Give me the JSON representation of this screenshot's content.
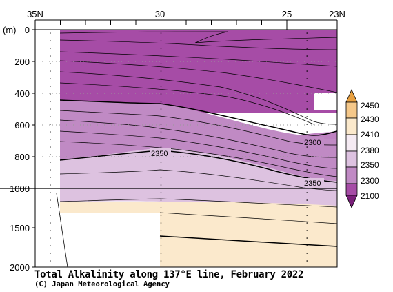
{
  "chart_data": {
    "type": "contour",
    "title": "Total Alkalinity along 137°E line, February 2022",
    "credit": "(C) Japan Meteorological Agency",
    "x_axis": {
      "label": "",
      "ticks": [
        {
          "value": 35,
          "text": "35N"
        },
        {
          "value": 30,
          "text": "30"
        },
        {
          "value": 25,
          "text": "25"
        },
        {
          "value": 23,
          "text": "23N"
        }
      ],
      "range": [
        35,
        23
      ]
    },
    "y_axis": {
      "unit": "(m)",
      "ticks": [
        0,
        200,
        400,
        600,
        800,
        1000,
        1500,
        2000
      ],
      "range": [
        0,
        2000
      ],
      "scale_break": 1000
    },
    "colorbar": {
      "levels": [
        2100,
        2300,
        2350,
        2380,
        2410,
        2430,
        2450
      ],
      "colors": [
        "#a64ca6",
        "#c08ac4",
        "#ddc2e0",
        "#f5ebf3",
        "#fbe9cc",
        "#f5c88a",
        "#e8a040"
      ]
    },
    "contours": [
      {
        "level": 2300,
        "label": "2300",
        "points": [
          [
            33.8,
            435
          ],
          [
            30,
            460
          ],
          [
            27,
            560
          ],
          [
            25.3,
            660
          ],
          [
            24.5,
            700
          ],
          [
            23,
            700
          ]
        ]
      },
      {
        "level": 2350,
        "label": "2350",
        "points": [
          [
            33.8,
            820
          ],
          [
            30,
            770
          ],
          [
            27,
            840
          ],
          [
            25,
            920
          ],
          [
            23.5,
            960
          ],
          [
            23,
            970
          ]
        ]
      },
      {
        "level": 2380,
        "label": "",
        "points": [
          [
            33.8,
            1100
          ],
          [
            30,
            1160
          ],
          [
            27,
            1190
          ],
          [
            23,
            1230
          ]
        ]
      },
      {
        "level": 2410,
        "label": "",
        "points": [
          [
            30,
            1620
          ],
          [
            27,
            1640
          ],
          [
            23,
            1700
          ]
        ]
      }
    ],
    "stations": [
      34.4,
      30,
      24.2
    ]
  }
}
